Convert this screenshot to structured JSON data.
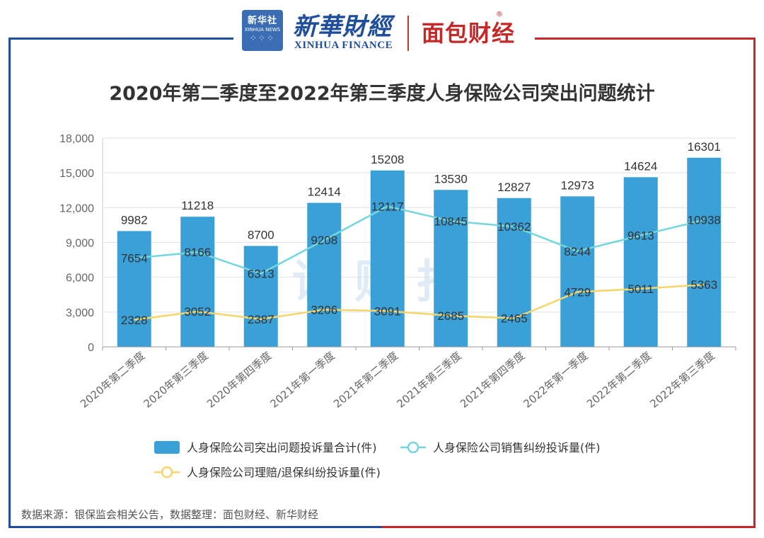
{
  "header": {
    "xinhua_news_cn": "新华社",
    "xinhua_news_en": "XINHUA NEWS",
    "xinhua_finance_cn": "新華財經",
    "xinhua_finance_en": "XINHUA FINANCE",
    "mianbao": "面包财经",
    "registered": "®"
  },
  "title": "2020年第二季度至2022年第三季度人身保险公司突出问题统计",
  "watermark": "读财报",
  "footer": "数据来源：银保监会相关公告，数据整理：面包财经、新华财经",
  "colors": {
    "bar": "#3aa0d8",
    "sales_line": "#74d6dd",
    "claims_line": "#f6d66a",
    "frame_left": "#1f4e9c",
    "frame_right": "#c62828",
    "axis_text": "#666666",
    "grid": "#e3e3e3"
  },
  "chart_data": {
    "type": "bar",
    "title": "2020年第二季度至2022年第三季度人身保险公司突出问题统计",
    "categories": [
      "2020年第二季度",
      "2020年第三季度",
      "2020年第四季度",
      "2021年第一季度",
      "2021年第二季度",
      "2021年第三季度",
      "2021年第四季度",
      "2022年第一季度",
      "2022年第二季度",
      "2022年第三季度"
    ],
    "ylim": [
      0,
      18000
    ],
    "yticks": [
      0,
      3000,
      6000,
      9000,
      12000,
      15000,
      18000
    ],
    "ytick_labels": [
      "0",
      "3,000",
      "6,000",
      "9,000",
      "12,000",
      "15,000",
      "18,000"
    ],
    "grid": true,
    "legend_position": "bottom",
    "series": [
      {
        "name": "人身保险公司突出问题投诉量合计(件)",
        "type": "bar",
        "values": [
          9982,
          11218,
          8700,
          12414,
          15208,
          13530,
          12827,
          12973,
          14624,
          16301
        ]
      },
      {
        "name": "人身保险公司销售纠纷投诉量(件)",
        "type": "line",
        "values": [
          7654,
          8166,
          6313,
          9208,
          12117,
          10845,
          10362,
          8244,
          9613,
          10938
        ]
      },
      {
        "name": "人身保险公司理赔/退保纠纷投诉量(件)",
        "type": "line",
        "values": [
          2328,
          3052,
          2387,
          3206,
          3091,
          2685,
          2465,
          4729,
          5011,
          5363
        ]
      }
    ]
  }
}
